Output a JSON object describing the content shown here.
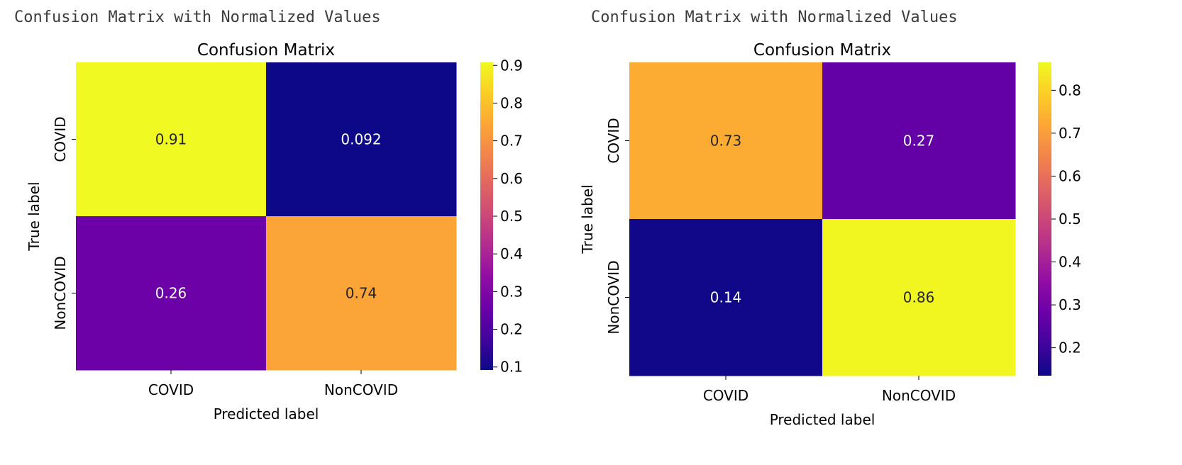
{
  "panels": [
    {
      "caption": "Confusion Matrix with Normalized Values",
      "chart_data": {
        "type": "heatmap",
        "title": "Confusion Matrix",
        "xlabel": "Predicted label",
        "ylabel": "True label",
        "x_categories": [
          "COVID",
          "NonCOVID"
        ],
        "y_categories": [
          "COVID",
          "NonCOVID"
        ],
        "values": [
          [
            0.908,
            0.092
          ],
          [
            0.26,
            0.74
          ]
        ],
        "annotations": [
          [
            "0.91",
            "0.092"
          ],
          [
            "0.26",
            "0.74"
          ]
        ],
        "colormap": "plasma",
        "colorbar": {
          "vmin": 0.092,
          "vmax": 0.908,
          "ticks": [
            0.1,
            0.2,
            0.3,
            0.4,
            0.5,
            0.6,
            0.7,
            0.8,
            0.9
          ],
          "tick_labels": [
            "0.1",
            "0.2",
            "0.3",
            "0.4",
            "0.5",
            "0.6",
            "0.7",
            "0.8",
            "0.9"
          ]
        }
      }
    },
    {
      "caption": "Confusion Matrix with Normalized Values",
      "chart_data": {
        "type": "heatmap",
        "title": "Confusion Matrix",
        "xlabel": "Predicted label",
        "ylabel": "True label",
        "x_categories": [
          "COVID",
          "NonCOVID"
        ],
        "y_categories": [
          "COVID",
          "NonCOVID"
        ],
        "values": [
          [
            0.73,
            0.27
          ],
          [
            0.14,
            0.86
          ]
        ],
        "annotations": [
          [
            "0.73",
            "0.27"
          ],
          [
            "0.14",
            "0.86"
          ]
        ],
        "colormap": "plasma",
        "colorbar": {
          "vmin": 0.135,
          "vmax": 0.865,
          "ticks": [
            0.2,
            0.3,
            0.4,
            0.5,
            0.6,
            0.7,
            0.8
          ],
          "tick_labels": [
            "0.2",
            "0.3",
            "0.4",
            "0.5",
            "0.6",
            "0.7",
            "0.8"
          ]
        }
      }
    }
  ]
}
